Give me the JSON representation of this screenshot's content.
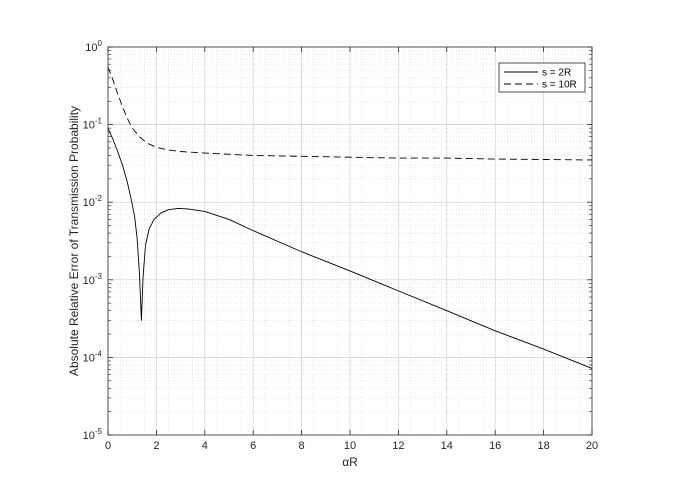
{
  "chart_data": {
    "type": "line",
    "title": "",
    "xlabel": "αR",
    "ylabel": "Absolute Relative Error of Transmission Probability",
    "xlim": [
      0,
      20
    ],
    "ylim": [
      1e-05,
      1
    ],
    "yscale": "log",
    "grid": true,
    "minor_grid": true,
    "legend_position": "top-right",
    "x_ticks": [
      0,
      2,
      4,
      6,
      8,
      10,
      12,
      14,
      16,
      18,
      20
    ],
    "y_ticks": [
      {
        "base": "10",
        "exp": "-5"
      },
      {
        "base": "10",
        "exp": "-4"
      },
      {
        "base": "10",
        "exp": "-3"
      },
      {
        "base": "10",
        "exp": "-2"
      },
      {
        "base": "10",
        "exp": "-1"
      },
      {
        "base": "10",
        "exp": "0"
      }
    ],
    "series": [
      {
        "name": "s = 2R",
        "style": "solid",
        "color": "#000000",
        "points": [
          [
            0,
            0.09
          ],
          [
            0.2,
            0.065
          ],
          [
            0.4,
            0.045
          ],
          [
            0.6,
            0.03
          ],
          [
            0.8,
            0.018
          ],
          [
            1.0,
            0.0095
          ],
          [
            1.1,
            0.0065
          ],
          [
            1.2,
            0.0035
          ],
          [
            1.3,
            0.0012
          ],
          [
            1.38,
            0.0003
          ],
          [
            1.45,
            0.0011
          ],
          [
            1.55,
            0.0028
          ],
          [
            1.7,
            0.0045
          ],
          [
            1.9,
            0.006
          ],
          [
            2.2,
            0.0073
          ],
          [
            2.5,
            0.008
          ],
          [
            2.9,
            0.0083
          ],
          [
            3.3,
            0.0082
          ],
          [
            4.0,
            0.0076
          ],
          [
            5.0,
            0.006
          ],
          [
            6.0,
            0.0043
          ],
          [
            8.0,
            0.0023
          ],
          [
            10.0,
            0.0013
          ],
          [
            12.0,
            0.00072
          ],
          [
            14.0,
            0.0004
          ],
          [
            16.0,
            0.00022
          ],
          [
            18.0,
            0.000128
          ],
          [
            20.0,
            7.2e-05
          ]
        ]
      },
      {
        "name": "s = 10R",
        "style": "dashed",
        "color": "#000000",
        "points": [
          [
            0,
            0.55
          ],
          [
            0.2,
            0.38
          ],
          [
            0.4,
            0.25
          ],
          [
            0.6,
            0.17
          ],
          [
            0.8,
            0.12
          ],
          [
            1.0,
            0.09
          ],
          [
            1.3,
            0.07
          ],
          [
            1.6,
            0.058
          ],
          [
            2.0,
            0.051
          ],
          [
            2.5,
            0.047
          ],
          [
            3.0,
            0.045
          ],
          [
            4.0,
            0.043
          ],
          [
            6.0,
            0.04
          ],
          [
            8.0,
            0.039
          ],
          [
            10.0,
            0.038
          ],
          [
            12.0,
            0.037
          ],
          [
            14.0,
            0.037
          ],
          [
            16.0,
            0.036
          ],
          [
            18.0,
            0.0355
          ],
          [
            20.0,
            0.035
          ]
        ]
      }
    ]
  }
}
